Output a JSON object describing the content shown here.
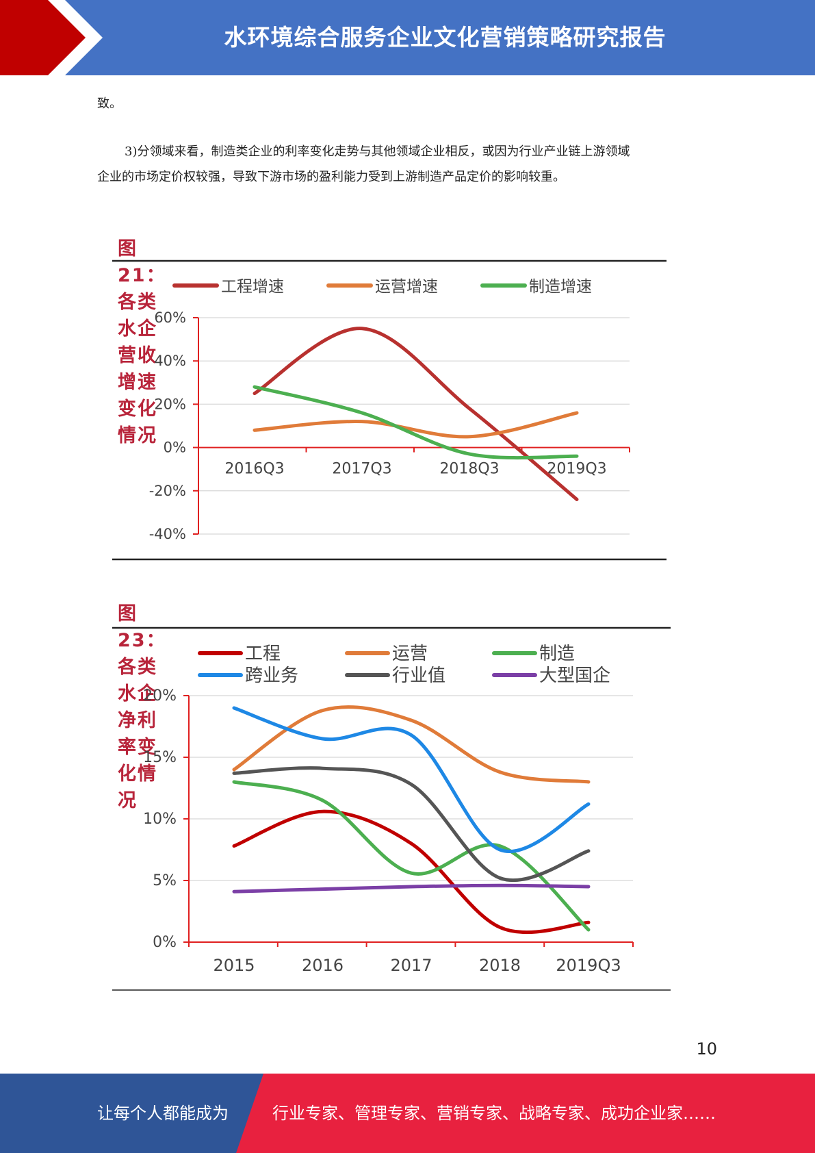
{
  "header": {
    "title": "水环境综合服务企业文化营销策略研究报告"
  },
  "body": {
    "para1": "致。",
    "para2_line1": "3)分领域来看，制造类企业的利率变化走势与其他领域企业相反，或因为行业产业链上游领域",
    "para2_line2": "企业的市场定价权较强，导致下游市场的盈利能力受到上游制造产品定价的影响较重。"
  },
  "figures": {
    "fig21": {
      "title": "图 21：各类水企营收增速变化情况"
    },
    "fig23": {
      "title": "图 23：各类水企净利率变化情况"
    }
  },
  "chart_data": [
    {
      "type": "line",
      "title": "图 21：各类水企营收增速变化情况",
      "categories": [
        "2016Q3",
        "2017Q3",
        "2018Q3",
        "2019Q3"
      ],
      "ylim": [
        -40,
        60
      ],
      "yticks": [
        60,
        40,
        20,
        0,
        -20,
        -40
      ],
      "ytick_labels": [
        "60%",
        "40%",
        "20%",
        "0%",
        "-20%",
        "-40%"
      ],
      "legend_position": "top",
      "grid": true,
      "series": [
        {
          "name": "工程增速",
          "color": "#b8312f",
          "values": [
            25,
            55,
            18,
            -24
          ]
        },
        {
          "name": "运营增速",
          "color": "#e07b39",
          "values": [
            8,
            12,
            5,
            16
          ]
        },
        {
          "name": "制造增速",
          "color": "#4caf50",
          "values": [
            28,
            16,
            -3,
            -4
          ]
        }
      ]
    },
    {
      "type": "line",
      "title": "图 23：各类水企净利率变化情况",
      "categories": [
        "2015",
        "2016",
        "2017",
        "2018",
        "2019Q3"
      ],
      "ylim": [
        0,
        20
      ],
      "yticks": [
        20,
        15,
        10,
        5,
        0
      ],
      "ytick_labels": [
        "20%",
        "15%",
        "10%",
        "5%",
        "0%"
      ],
      "legend_position": "top",
      "grid": true,
      "series": [
        {
          "name": "工程",
          "color": "#c00000",
          "values": [
            7.8,
            10.6,
            8.0,
            1.2,
            1.6
          ]
        },
        {
          "name": "运营",
          "color": "#e07b39",
          "values": [
            14.0,
            18.8,
            18.0,
            13.8,
            13.0
          ]
        },
        {
          "name": "制造",
          "color": "#4caf50",
          "values": [
            13.0,
            11.5,
            5.6,
            7.8,
            1.0
          ]
        },
        {
          "name": "跨业务",
          "color": "#1e88e5",
          "values": [
            19.0,
            16.5,
            16.8,
            7.5,
            11.2
          ]
        },
        {
          "name": "行业值",
          "color": "#555555",
          "values": [
            13.7,
            14.1,
            12.8,
            5.2,
            7.4
          ]
        },
        {
          "name": "大型国企",
          "color": "#7b3fa6",
          "values": [
            4.1,
            4.3,
            4.5,
            4.6,
            4.5
          ]
        }
      ]
    }
  ],
  "page": {
    "number": "10"
  },
  "footer": {
    "left": "让每个人都能成为",
    "right": "行业专家、管理专家、营销专家、战略专家、成功企业家……"
  }
}
